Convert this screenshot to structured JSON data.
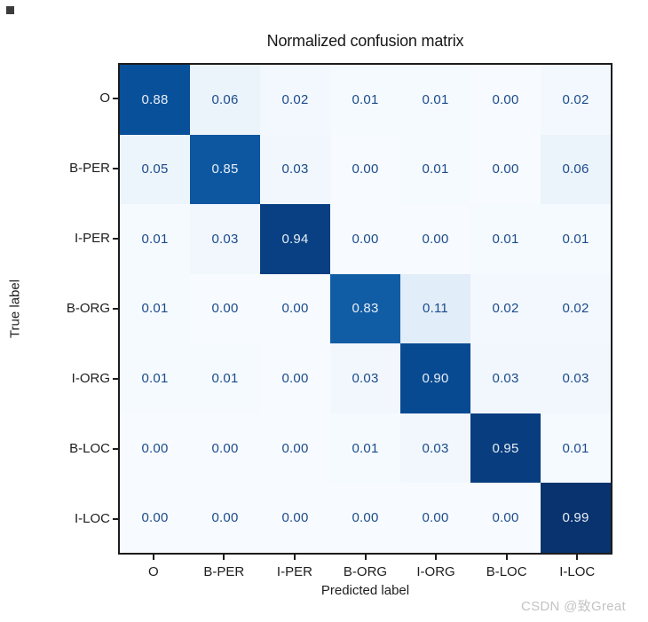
{
  "title": "Normalized confusion matrix",
  "watermark": "CSDN @致Great",
  "colors": {
    "cell_text_dark": "#1b4b8b",
    "cell_text_light": "#e9eef5",
    "axis_text": "#1d1d1d",
    "border": "#1c1c1c",
    "watermark": "#c3c3c3",
    "colormap_name": "Blues",
    "colormap_stops": [
      "#f7fbff",
      "#deebf7",
      "#c6dbef",
      "#9ecae1",
      "#6baed6",
      "#4292c6",
      "#2171b5",
      "#08519c",
      "#08306b"
    ]
  },
  "chart_data": {
    "type": "heatmap",
    "title": "Normalized confusion matrix",
    "xlabel": "Predicted label",
    "ylabel": "True label",
    "x_categories": [
      "O",
      "B-PER",
      "I-PER",
      "B-ORG",
      "I-ORG",
      "B-LOC",
      "I-LOC"
    ],
    "y_categories": [
      "O",
      "B-PER",
      "I-PER",
      "B-ORG",
      "I-ORG",
      "B-LOC",
      "I-LOC"
    ],
    "rows": [
      [
        0.88,
        0.06,
        0.02,
        0.01,
        0.01,
        0.0,
        0.02
      ],
      [
        0.05,
        0.85,
        0.03,
        0.0,
        0.01,
        0.0,
        0.06
      ],
      [
        0.01,
        0.03,
        0.94,
        0.0,
        0.0,
        0.01,
        0.01
      ],
      [
        0.01,
        0.0,
        0.0,
        0.83,
        0.11,
        0.02,
        0.02
      ],
      [
        0.01,
        0.01,
        0.0,
        0.03,
        0.9,
        0.03,
        0.03
      ],
      [
        0.0,
        0.0,
        0.0,
        0.01,
        0.03,
        0.95,
        0.01
      ],
      [
        0.0,
        0.0,
        0.0,
        0.0,
        0.0,
        0.0,
        0.99
      ]
    ],
    "value_range": [
      0,
      1
    ],
    "value_format": "0.00",
    "colormap": "Blues",
    "grid": false,
    "legend": "none",
    "text_color_threshold": 0.5
  }
}
